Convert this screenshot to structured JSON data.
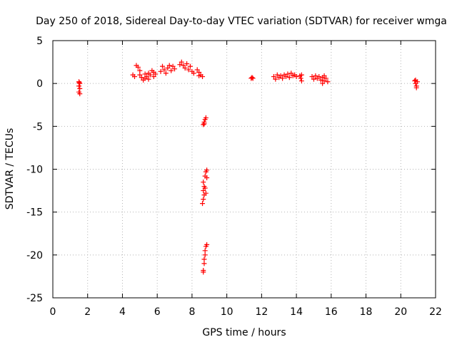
{
  "chart_data": {
    "type": "scatter",
    "title": "Day 250 of 2018, Sidereal Day-to-day VTEC variation (SDTVAR) for receiver wmga",
    "xlabel": "GPS time / hours",
    "ylabel": "SDTVAR / TECUs",
    "xlim": [
      0,
      22
    ],
    "ylim": [
      -25,
      5
    ],
    "xticks": [
      0,
      2,
      4,
      6,
      8,
      10,
      12,
      14,
      16,
      18,
      20,
      22
    ],
    "yticks": [
      5,
      0,
      -5,
      -10,
      -15,
      -20,
      -25
    ],
    "grid": true,
    "marker": "+",
    "marker_color": "#ff0000",
    "series": [
      {
        "name": "SDTVAR",
        "points": [
          [
            1.5,
            0.2
          ],
          [
            1.55,
            0.0
          ],
          [
            1.5,
            -0.3
          ],
          [
            1.55,
            -0.6
          ],
          [
            1.5,
            -1.0
          ],
          [
            1.55,
            -1.2
          ],
          [
            1.52,
            0.1
          ],
          [
            4.6,
            1.0
          ],
          [
            4.7,
            0.8
          ],
          [
            4.8,
            2.1
          ],
          [
            4.9,
            1.9
          ],
          [
            5.0,
            1.5
          ],
          [
            5.0,
            1.0
          ],
          [
            5.1,
            0.7
          ],
          [
            5.2,
            0.4
          ],
          [
            5.3,
            0.6
          ],
          [
            5.3,
            1.1
          ],
          [
            5.4,
            0.8
          ],
          [
            5.5,
            1.2
          ],
          [
            5.5,
            0.5
          ],
          [
            5.6,
            1.0
          ],
          [
            5.7,
            1.5
          ],
          [
            5.8,
            1.3
          ],
          [
            5.8,
            0.8
          ],
          [
            5.9,
            1.1
          ],
          [
            6.2,
            1.4
          ],
          [
            6.3,
            2.0
          ],
          [
            6.4,
            1.6
          ],
          [
            6.5,
            1.2
          ],
          [
            6.6,
            1.8
          ],
          [
            6.7,
            2.1
          ],
          [
            6.8,
            1.5
          ],
          [
            6.9,
            2.0
          ],
          [
            7.0,
            1.7
          ],
          [
            7.3,
            2.2
          ],
          [
            7.4,
            2.5
          ],
          [
            7.5,
            2.1
          ],
          [
            7.6,
            1.8
          ],
          [
            7.7,
            2.3
          ],
          [
            7.8,
            1.6
          ],
          [
            7.9,
            2.0
          ],
          [
            8.0,
            1.4
          ],
          [
            8.1,
            1.2
          ],
          [
            8.3,
            1.6
          ],
          [
            8.4,
            1.3
          ],
          [
            8.5,
            1.0
          ],
          [
            8.6,
            0.8
          ],
          [
            8.4,
            0.9
          ],
          [
            8.65,
            -4.8
          ],
          [
            8.7,
            -4.5
          ],
          [
            8.75,
            -4.2
          ],
          [
            8.8,
            -4.0
          ],
          [
            8.7,
            -4.7
          ],
          [
            8.65,
            -11.5
          ],
          [
            8.7,
            -12.0
          ],
          [
            8.75,
            -10.8
          ],
          [
            8.8,
            -10.3
          ],
          [
            8.85,
            -10.1
          ],
          [
            8.65,
            -12.5
          ],
          [
            8.7,
            -13.0
          ],
          [
            8.65,
            -13.5
          ],
          [
            8.6,
            -14.0
          ],
          [
            8.75,
            -12.2
          ],
          [
            8.8,
            -12.8
          ],
          [
            8.85,
            -11.0
          ],
          [
            8.65,
            -21.8
          ],
          [
            8.7,
            -21.0
          ],
          [
            8.7,
            -20.5
          ],
          [
            8.75,
            -20.0
          ],
          [
            8.75,
            -19.5
          ],
          [
            8.8,
            -19.0
          ],
          [
            8.85,
            -18.8
          ],
          [
            8.65,
            -22.0
          ],
          [
            11.4,
            0.6
          ],
          [
            11.45,
            0.7
          ],
          [
            11.5,
            0.6
          ],
          [
            12.7,
            0.8
          ],
          [
            12.8,
            0.5
          ],
          [
            12.9,
            1.0
          ],
          [
            13.0,
            0.7
          ],
          [
            13.1,
            0.9
          ],
          [
            13.2,
            0.6
          ],
          [
            13.3,
            1.0
          ],
          [
            13.4,
            0.8
          ],
          [
            13.5,
            1.1
          ],
          [
            13.6,
            0.7
          ],
          [
            13.7,
            1.2
          ],
          [
            13.8,
            0.9
          ],
          [
            13.9,
            1.0
          ],
          [
            14.0,
            0.8
          ],
          [
            14.2,
            0.9
          ],
          [
            14.25,
            0.6
          ],
          [
            14.3,
            0.3
          ],
          [
            14.3,
            1.0
          ],
          [
            14.9,
            0.8
          ],
          [
            15.0,
            0.5
          ],
          [
            15.1,
            0.9
          ],
          [
            15.2,
            0.6
          ],
          [
            15.3,
            0.8
          ],
          [
            15.4,
            0.4
          ],
          [
            15.5,
            0.7
          ],
          [
            15.6,
            0.3
          ],
          [
            15.7,
            0.6
          ],
          [
            15.8,
            0.2
          ],
          [
            15.5,
            0.0
          ],
          [
            15.6,
            0.9
          ],
          [
            20.8,
            0.3
          ],
          [
            20.85,
            0.0
          ],
          [
            20.9,
            -0.3
          ],
          [
            20.95,
            0.2
          ],
          [
            20.9,
            -0.5
          ],
          [
            20.85,
            0.4
          ]
        ]
      }
    ]
  }
}
